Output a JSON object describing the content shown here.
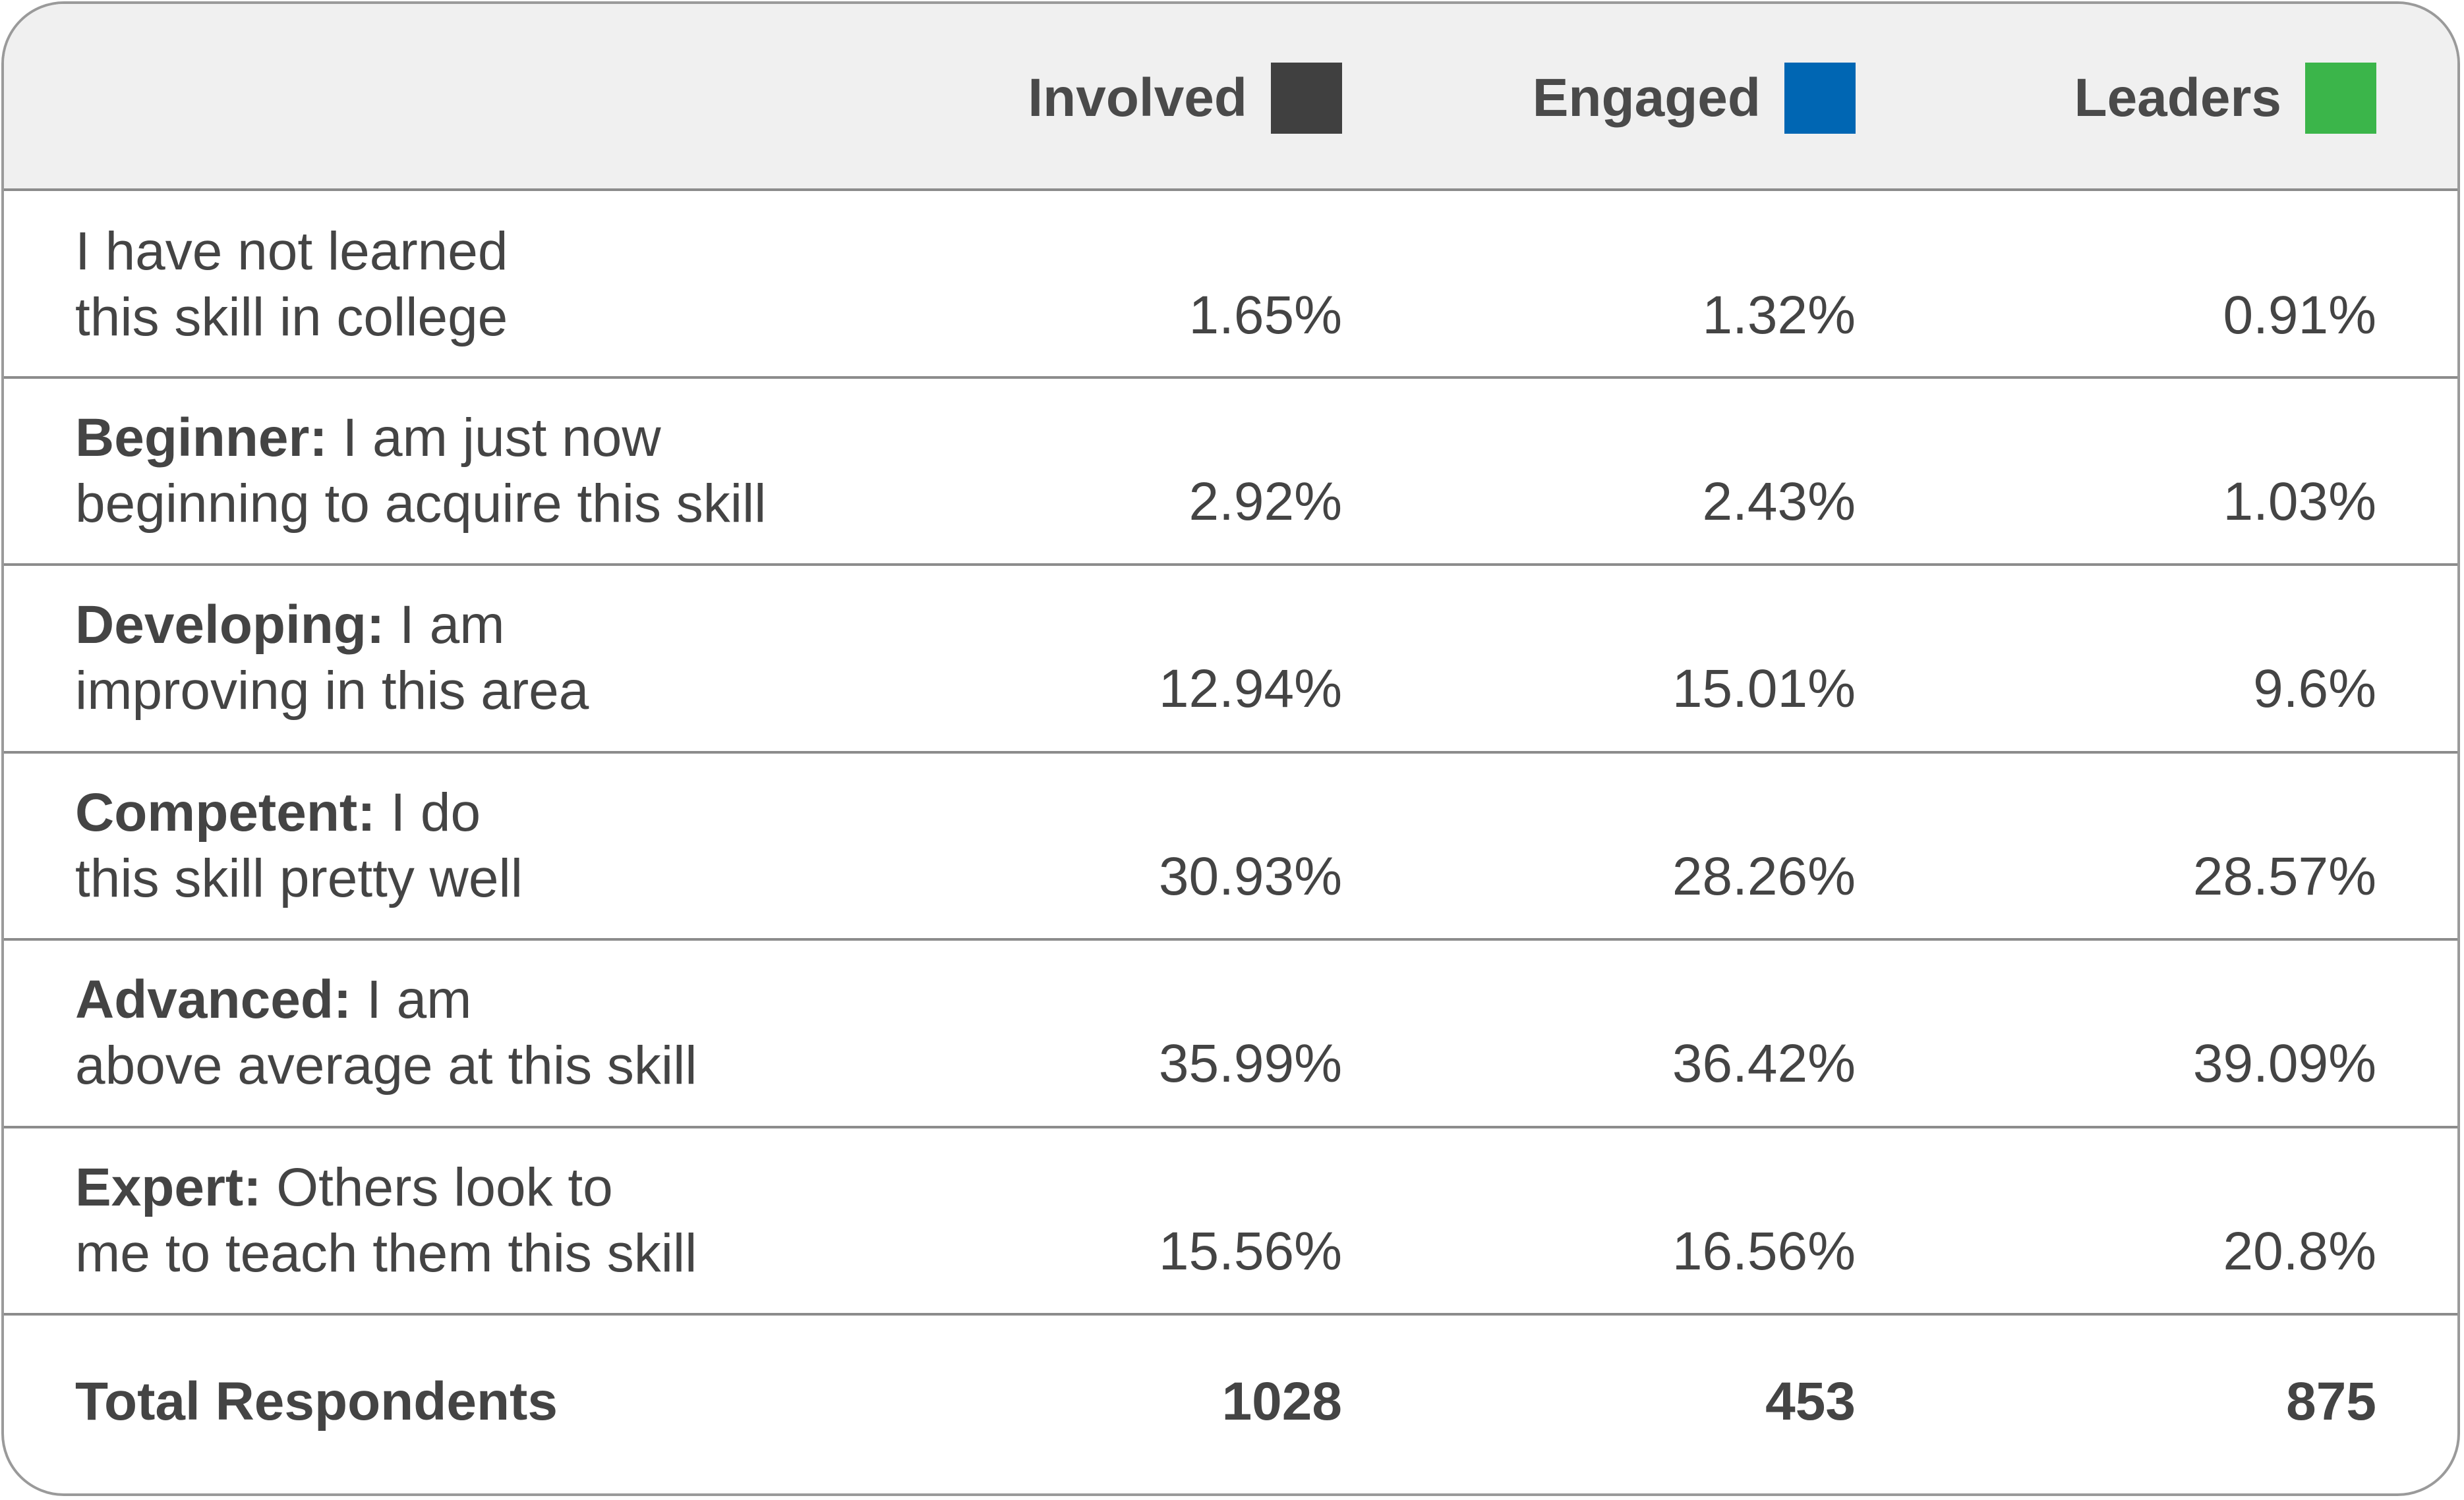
{
  "chart_data": {
    "type": "table",
    "columns": [
      {
        "name": "Involved",
        "color": "#404040"
      },
      {
        "name": "Engaged",
        "color": "#0066b3"
      },
      {
        "name": "Leaders",
        "color": "#3bb54a"
      }
    ],
    "rows": [
      {
        "bold": "",
        "line1": "I have not learned",
        "line2": "this skill in college",
        "values": [
          "1.65%",
          "1.32%",
          "0.91%"
        ]
      },
      {
        "bold": "Beginner:",
        "line1": " I am just now",
        "line2": "beginning to acquire this skill",
        "values": [
          "2.92%",
          "2.43%",
          "1.03%"
        ]
      },
      {
        "bold": "Developing:",
        "line1": " I am",
        "line2": "improving in this area",
        "values": [
          "12.94%",
          "15.01%",
          "9.6%"
        ]
      },
      {
        "bold": "Competent:",
        "line1": " I do",
        "line2": "this skill pretty well",
        "values": [
          "30.93%",
          "28.26%",
          "28.57%"
        ]
      },
      {
        "bold": "Advanced:",
        "line1": " I am",
        "line2": "above average at this skill",
        "values": [
          "35.99%",
          "36.42%",
          "39.09%"
        ]
      },
      {
        "bold": "Expert:",
        "line1": " Others look to",
        "line2": "me to teach them this skill",
        "values": [
          "15.56%",
          "16.56%",
          "20.8%"
        ]
      }
    ],
    "total": {
      "label": "Total Respondents",
      "values": [
        "1028",
        "453",
        "875"
      ]
    }
  }
}
